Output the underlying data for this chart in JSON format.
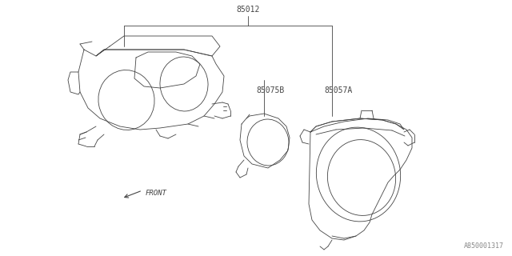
{
  "bg_color": "#ffffff",
  "line_color": "#444444",
  "text_color": "#444444",
  "labels": {
    "part_85012": "85012",
    "part_85075B": "85075B",
    "part_85057A": "85057A",
    "front_label": "FRONT",
    "diagram_id": "A850001317"
  },
  "font_size_parts": 7,
  "font_size_diagram_id": 6,
  "lw": 0.6
}
